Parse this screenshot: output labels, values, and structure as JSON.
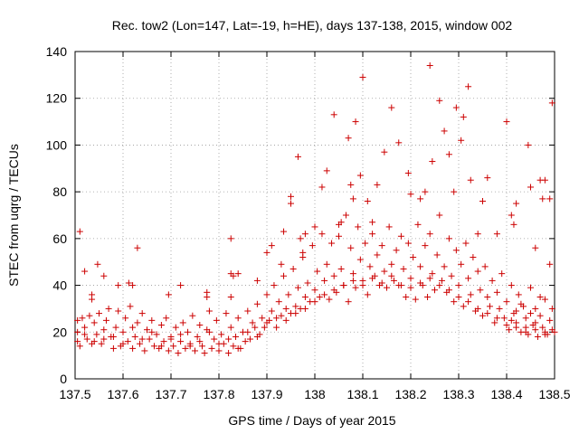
{
  "chart_data": {
    "type": "scatter",
    "title": "Rec. tow2 (Lon=147, Lat=-19, h=HE), days 137-138, 2015, window 002",
    "xlabel": "GPS time / Days of year 2015",
    "ylabel": "STEC from uqrg / TECUs",
    "xlim": [
      137.5,
      138.5
    ],
    "ylim": [
      0,
      140
    ],
    "x_ticks": [
      "137.5",
      "137.6",
      "137.7",
      "137.8",
      "137.9",
      "138",
      "138.1",
      "138.2",
      "138.3",
      "138.4",
      "138.5"
    ],
    "x_tick_values": [
      137.5,
      137.6,
      137.7,
      137.8,
      137.9,
      138.0,
      138.1,
      138.2,
      138.3,
      138.4,
      138.5
    ],
    "y_ticks": [
      "0",
      "20",
      "40",
      "60",
      "80",
      "100",
      "120",
      "140"
    ],
    "y_tick_values": [
      0,
      20,
      40,
      60,
      80,
      100,
      120,
      140
    ],
    "grid": true,
    "marker": "+",
    "color": "#cc0000",
    "points": [
      [
        137.51,
        63
      ],
      [
        137.52,
        46
      ],
      [
        137.535,
        36
      ],
      [
        137.535,
        34
      ],
      [
        137.547,
        49
      ],
      [
        137.56,
        44
      ],
      [
        137.59,
        40
      ],
      [
        137.612,
        41
      ],
      [
        137.63,
        56
      ],
      [
        137.62,
        40
      ],
      [
        137.695,
        36
      ],
      [
        137.72,
        40
      ],
      [
        137.775,
        37
      ],
      [
        137.775,
        35
      ],
      [
        137.825,
        35
      ],
      [
        137.825,
        60
      ],
      [
        137.825,
        45
      ],
      [
        137.83,
        44
      ],
      [
        137.84,
        45
      ],
      [
        137.88,
        42
      ],
      [
        137.9,
        54
      ],
      [
        137.91,
        57
      ],
      [
        137.93,
        49
      ],
      [
        137.935,
        63
      ],
      [
        137.95,
        75
      ],
      [
        137.95,
        78
      ],
      [
        137.965,
        95
      ],
      [
        137.97,
        60
      ],
      [
        137.98,
        62
      ],
      [
        137.975,
        54
      ],
      [
        138.0,
        65
      ],
      [
        138.015,
        82
      ],
      [
        138.025,
        89
      ],
      [
        138.04,
        113
      ],
      [
        138.05,
        66
      ],
      [
        138.055,
        67
      ],
      [
        138.07,
        103
      ],
      [
        138.075,
        83
      ],
      [
        138.08,
        77
      ],
      [
        138.085,
        110
      ],
      [
        138.1,
        129
      ],
      [
        138.095,
        87
      ],
      [
        138.11,
        76
      ],
      [
        138.12,
        67
      ],
      [
        138.13,
        83
      ],
      [
        138.145,
        97
      ],
      [
        138.16,
        116
      ],
      [
        138.175,
        101
      ],
      [
        138.195,
        88
      ],
      [
        138.2,
        79
      ],
      [
        138.22,
        77
      ],
      [
        138.23,
        80
      ],
      [
        138.24,
        134
      ],
      [
        138.245,
        93
      ],
      [
        138.26,
        119
      ],
      [
        138.27,
        106
      ],
      [
        138.28,
        96
      ],
      [
        138.29,
        80
      ],
      [
        138.295,
        116
      ],
      [
        138.305,
        102
      ],
      [
        138.31,
        112
      ],
      [
        138.32,
        125
      ],
      [
        138.325,
        85
      ],
      [
        138.34,
        62
      ],
      [
        138.35,
        76
      ],
      [
        138.36,
        86
      ],
      [
        138.38,
        62
      ],
      [
        138.4,
        110
      ],
      [
        138.41,
        70
      ],
      [
        138.415,
        66
      ],
      [
        138.42,
        75
      ],
      [
        138.445,
        100
      ],
      [
        138.45,
        82
      ],
      [
        138.46,
        56
      ],
      [
        138.47,
        85
      ],
      [
        138.475,
        77
      ],
      [
        138.48,
        85
      ],
      [
        138.49,
        77
      ],
      [
        138.495,
        118
      ],
      [
        138.49,
        49
      ],
      [
        137.505,
        25
      ],
      [
        137.505,
        20
      ],
      [
        137.505,
        16
      ],
      [
        137.51,
        14
      ],
      [
        137.515,
        26
      ],
      [
        137.52,
        22
      ],
      [
        137.525,
        17
      ],
      [
        137.53,
        27
      ],
      [
        137.535,
        15
      ],
      [
        137.54,
        24
      ],
      [
        137.545,
        19
      ],
      [
        137.55,
        28
      ],
      [
        137.555,
        15
      ],
      [
        137.56,
        17
      ],
      [
        137.565,
        25
      ],
      [
        137.57,
        30
      ],
      [
        137.575,
        18
      ],
      [
        137.58,
        13
      ],
      [
        137.585,
        22
      ],
      [
        137.59,
        29
      ],
      [
        137.595,
        14
      ],
      [
        137.6,
        20
      ],
      [
        137.605,
        26
      ],
      [
        137.61,
        16
      ],
      [
        137.615,
        31
      ],
      [
        137.62,
        13
      ],
      [
        137.625,
        18
      ],
      [
        137.63,
        24
      ],
      [
        137.635,
        15
      ],
      [
        137.64,
        28
      ],
      [
        137.645,
        12
      ],
      [
        137.65,
        21
      ],
      [
        137.655,
        17
      ],
      [
        137.66,
        25
      ],
      [
        137.665,
        14
      ],
      [
        137.67,
        19
      ],
      [
        137.675,
        13
      ],
      [
        137.68,
        23
      ],
      [
        137.685,
        16
      ],
      [
        137.69,
        26
      ],
      [
        137.695,
        12
      ],
      [
        137.7,
        18
      ],
      [
        137.705,
        14
      ],
      [
        137.71,
        22
      ],
      [
        137.715,
        11
      ],
      [
        137.72,
        16
      ],
      [
        137.725,
        24
      ],
      [
        137.73,
        13
      ],
      [
        137.735,
        20
      ],
      [
        137.74,
        15
      ],
      [
        137.745,
        27
      ],
      [
        137.75,
        12
      ],
      [
        137.755,
        18
      ],
      [
        137.76,
        23
      ],
      [
        137.765,
        14
      ],
      [
        137.77,
        11
      ],
      [
        137.775,
        21
      ],
      [
        137.78,
        29
      ],
      [
        137.785,
        13
      ],
      [
        137.79,
        17
      ],
      [
        137.795,
        25
      ],
      [
        137.8,
        12
      ],
      [
        137.805,
        19
      ],
      [
        137.81,
        15
      ],
      [
        137.815,
        28
      ],
      [
        137.82,
        11
      ],
      [
        137.825,
        22
      ],
      [
        137.83,
        14
      ],
      [
        137.835,
        18
      ],
      [
        137.84,
        26
      ],
      [
        137.845,
        13
      ],
      [
        137.85,
        20
      ],
      [
        137.855,
        16
      ],
      [
        137.86,
        29
      ],
      [
        137.865,
        17
      ],
      [
        137.87,
        24
      ],
      [
        137.875,
        22
      ],
      [
        137.88,
        32
      ],
      [
        137.885,
        19
      ],
      [
        137.89,
        26
      ],
      [
        137.895,
        22
      ],
      [
        137.9,
        36
      ],
      [
        137.905,
        25
      ],
      [
        137.91,
        29
      ],
      [
        137.915,
        40
      ],
      [
        137.92,
        26
      ],
      [
        137.925,
        33
      ],
      [
        137.93,
        27
      ],
      [
        137.935,
        44
      ],
      [
        137.94,
        30
      ],
      [
        137.945,
        36
      ],
      [
        137.95,
        28
      ],
      [
        137.955,
        47
      ],
      [
        137.96,
        31
      ],
      [
        137.965,
        39
      ],
      [
        137.97,
        30
      ],
      [
        137.975,
        52
      ],
      [
        137.98,
        35
      ],
      [
        137.985,
        41
      ],
      [
        137.99,
        33
      ],
      [
        137.995,
        57
      ],
      [
        138.0,
        38
      ],
      [
        138.005,
        46
      ],
      [
        138.01,
        35
      ],
      [
        138.015,
        62
      ],
      [
        138.02,
        42
      ],
      [
        138.025,
        49
      ],
      [
        138.03,
        34
      ],
      [
        138.035,
        58
      ],
      [
        138.04,
        44
      ],
      [
        138.045,
        37
      ],
      [
        138.05,
        61
      ],
      [
        138.055,
        47
      ],
      [
        138.06,
        40
      ],
      [
        138.065,
        70
      ],
      [
        138.07,
        33
      ],
      [
        138.075,
        56
      ],
      [
        138.08,
        45
      ],
      [
        138.085,
        39
      ],
      [
        138.09,
        65
      ],
      [
        138.095,
        51
      ],
      [
        138.1,
        42
      ],
      [
        138.105,
        58
      ],
      [
        138.11,
        36
      ],
      [
        138.115,
        48
      ],
      [
        138.12,
        62
      ],
      [
        138.125,
        44
      ],
      [
        138.13,
        53
      ],
      [
        138.135,
        40
      ],
      [
        138.14,
        57
      ],
      [
        138.145,
        46
      ],
      [
        138.15,
        39
      ],
      [
        138.155,
        65
      ],
      [
        138.16,
        49
      ],
      [
        138.165,
        42
      ],
      [
        138.17,
        55
      ],
      [
        138.175,
        40
      ],
      [
        138.18,
        61
      ],
      [
        138.185,
        47
      ],
      [
        138.19,
        35
      ],
      [
        138.195,
        58
      ],
      [
        138.2,
        43
      ],
      [
        138.205,
        52
      ],
      [
        138.21,
        34
      ],
      [
        138.215,
        66
      ],
      [
        138.22,
        48
      ],
      [
        138.225,
        40
      ],
      [
        138.23,
        57
      ],
      [
        138.235,
        35
      ],
      [
        138.24,
        62
      ],
      [
        138.245,
        45
      ],
      [
        138.25,
        38
      ],
      [
        138.255,
        53
      ],
      [
        138.26,
        70
      ],
      [
        138.265,
        42
      ],
      [
        138.27,
        48
      ],
      [
        138.275,
        37
      ],
      [
        138.28,
        60
      ],
      [
        138.285,
        44
      ],
      [
        138.29,
        33
      ],
      [
        138.295,
        55
      ],
      [
        138.3,
        40
      ],
      [
        138.305,
        49
      ],
      [
        138.31,
        31
      ],
      [
        138.315,
        58
      ],
      [
        138.32,
        43
      ],
      [
        138.325,
        36
      ],
      [
        138.33,
        52
      ],
      [
        138.335,
        29
      ],
      [
        138.34,
        46
      ],
      [
        138.345,
        38
      ],
      [
        138.35,
        27
      ],
      [
        138.355,
        48
      ],
      [
        138.36,
        35
      ],
      [
        138.365,
        31
      ],
      [
        138.37,
        42
      ],
      [
        138.375,
        24
      ],
      [
        138.38,
        37
      ],
      [
        138.385,
        30
      ],
      [
        138.39,
        45
      ],
      [
        138.395,
        26
      ],
      [
        138.4,
        33
      ],
      [
        138.405,
        21
      ],
      [
        138.41,
        40
      ],
      [
        138.415,
        28
      ],
      [
        138.42,
        24
      ],
      [
        138.425,
        36
      ],
      [
        138.43,
        20
      ],
      [
        138.435,
        31
      ],
      [
        138.44,
        26
      ],
      [
        138.445,
        19
      ],
      [
        138.45,
        39
      ],
      [
        138.455,
        23
      ],
      [
        138.46,
        30
      ],
      [
        138.465,
        18
      ],
      [
        138.47,
        27
      ],
      [
        138.475,
        22
      ],
      [
        138.48,
        34
      ],
      [
        138.485,
        19
      ],
      [
        138.49,
        25
      ],
      [
        138.495,
        21
      ],
      [
        138.495,
        30
      ],
      [
        138.48,
        20
      ],
      [
        138.47,
        35
      ],
      [
        138.46,
        24
      ],
      [
        138.45,
        28
      ],
      [
        138.44,
        22
      ],
      [
        138.43,
        32
      ],
      [
        138.42,
        29
      ],
      [
        138.41,
        25
      ],
      [
        137.52,
        19
      ],
      [
        137.54,
        16
      ],
      [
        137.56,
        21
      ],
      [
        137.58,
        18
      ],
      [
        137.6,
        15
      ],
      [
        137.62,
        22
      ],
      [
        137.64,
        17
      ],
      [
        137.66,
        20
      ],
      [
        137.68,
        14
      ],
      [
        137.7,
        17
      ],
      [
        137.72,
        19
      ],
      [
        137.74,
        14
      ],
      [
        137.76,
        16
      ],
      [
        137.78,
        20
      ],
      [
        137.8,
        15
      ],
      [
        137.82,
        17
      ],
      [
        137.84,
        13
      ],
      [
        137.86,
        20
      ],
      [
        137.88,
        18
      ],
      [
        137.9,
        24
      ],
      [
        137.92,
        22
      ],
      [
        137.94,
        25
      ],
      [
        137.96,
        28
      ],
      [
        137.98,
        30
      ],
      [
        138.0,
        33
      ],
      [
        138.02,
        36
      ],
      [
        138.04,
        38
      ],
      [
        138.06,
        40
      ],
      [
        138.08,
        42
      ],
      [
        138.1,
        40
      ],
      [
        138.12,
        43
      ],
      [
        138.14,
        41
      ],
      [
        138.16,
        44
      ],
      [
        138.18,
        40
      ],
      [
        138.2,
        39
      ],
      [
        138.22,
        41
      ],
      [
        138.24,
        43
      ],
      [
        138.26,
        40
      ],
      [
        138.28,
        38
      ],
      [
        138.3,
        35
      ],
      [
        138.32,
        33
      ],
      [
        138.34,
        30
      ],
      [
        138.36,
        28
      ],
      [
        138.38,
        26
      ],
      [
        138.4,
        23
      ],
      [
        138.42,
        22
      ],
      [
        138.44,
        20
      ],
      [
        138.46,
        21
      ],
      [
        138.48,
        19
      ],
      [
        138.5,
        20
      ]
    ]
  }
}
